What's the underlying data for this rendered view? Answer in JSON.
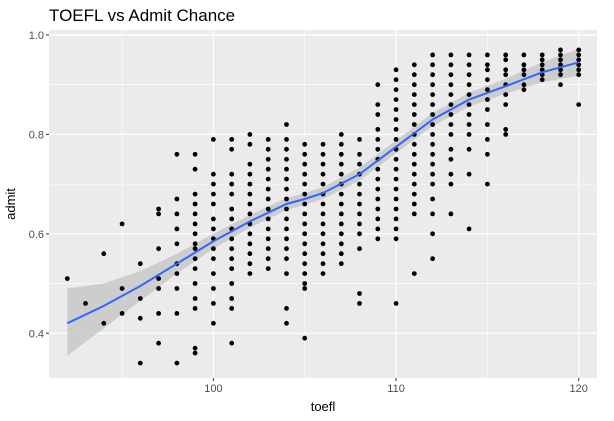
{
  "chart_data": {
    "type": "scatter",
    "title": "TOEFL vs Admit Chance",
    "xlabel": "toefl",
    "ylabel": "admit",
    "xlim": [
      91,
      121
    ],
    "ylim": [
      0.31,
      1.01
    ],
    "x_ticks": [
      100,
      110,
      120
    ],
    "y_ticks": [
      0.4,
      0.6,
      0.8,
      1.0
    ],
    "y_tick_labels": [
      "0.4",
      "0.6",
      "0.8",
      "1.0"
    ],
    "grid": true,
    "legend": "none",
    "colors": {
      "panel": "#ebebeb",
      "grid": "#ffffff",
      "points": "#000000",
      "smooth_line": "#3366ff",
      "ribbon": "#c8c8c8"
    },
    "points": [
      [
        92,
        0.51
      ],
      [
        93,
        0.46
      ],
      [
        94,
        0.42
      ],
      [
        94,
        0.56
      ],
      [
        95,
        0.44
      ],
      [
        95,
        0.49
      ],
      [
        95,
        0.62
      ],
      [
        96,
        0.34
      ],
      [
        96,
        0.43
      ],
      [
        96,
        0.47
      ],
      [
        96,
        0.54
      ],
      [
        97,
        0.38
      ],
      [
        97,
        0.44
      ],
      [
        97,
        0.49
      ],
      [
        97,
        0.51
      ],
      [
        97,
        0.57
      ],
      [
        97,
        0.64
      ],
      [
        97,
        0.65
      ],
      [
        98,
        0.34
      ],
      [
        98,
        0.44
      ],
      [
        98,
        0.49
      ],
      [
        98,
        0.52
      ],
      [
        98,
        0.54
      ],
      [
        98,
        0.58
      ],
      [
        98,
        0.61
      ],
      [
        98,
        0.64
      ],
      [
        98,
        0.67
      ],
      [
        98,
        0.76
      ],
      [
        99,
        0.36
      ],
      [
        99,
        0.37
      ],
      [
        99,
        0.45
      ],
      [
        99,
        0.47
      ],
      [
        99,
        0.5
      ],
      [
        99,
        0.53
      ],
      [
        99,
        0.55
      ],
      [
        99,
        0.57
      ],
      [
        99,
        0.58
      ],
      [
        99,
        0.6
      ],
      [
        99,
        0.62
      ],
      [
        99,
        0.64
      ],
      [
        99,
        0.66
      ],
      [
        99,
        0.68
      ],
      [
        99,
        0.73
      ],
      [
        99,
        0.76
      ],
      [
        100,
        0.42
      ],
      [
        100,
        0.46
      ],
      [
        100,
        0.49
      ],
      [
        100,
        0.52
      ],
      [
        100,
        0.55
      ],
      [
        100,
        0.57
      ],
      [
        100,
        0.59
      ],
      [
        100,
        0.61
      ],
      [
        100,
        0.63
      ],
      [
        100,
        0.66
      ],
      [
        100,
        0.68
      ],
      [
        100,
        0.7
      ],
      [
        100,
        0.72
      ],
      [
        100,
        0.79
      ],
      [
        101,
        0.38
      ],
      [
        101,
        0.45
      ],
      [
        101,
        0.47
      ],
      [
        101,
        0.5
      ],
      [
        101,
        0.53
      ],
      [
        101,
        0.55
      ],
      [
        101,
        0.57
      ],
      [
        101,
        0.59
      ],
      [
        101,
        0.61
      ],
      [
        101,
        0.63
      ],
      [
        101,
        0.65
      ],
      [
        101,
        0.68
      ],
      [
        101,
        0.7
      ],
      [
        101,
        0.72
      ],
      [
        101,
        0.77
      ],
      [
        101,
        0.79
      ],
      [
        102,
        0.52
      ],
      [
        102,
        0.54
      ],
      [
        102,
        0.56
      ],
      [
        102,
        0.58
      ],
      [
        102,
        0.6
      ],
      [
        102,
        0.62
      ],
      [
        102,
        0.64
      ],
      [
        102,
        0.66
      ],
      [
        102,
        0.68
      ],
      [
        102,
        0.7
      ],
      [
        102,
        0.72
      ],
      [
        102,
        0.74
      ],
      [
        102,
        0.78
      ],
      [
        102,
        0.8
      ],
      [
        103,
        0.53
      ],
      [
        103,
        0.55
      ],
      [
        103,
        0.57
      ],
      [
        103,
        0.59
      ],
      [
        103,
        0.61
      ],
      [
        103,
        0.63
      ],
      [
        103,
        0.65
      ],
      [
        103,
        0.67
      ],
      [
        103,
        0.69
      ],
      [
        103,
        0.71
      ],
      [
        103,
        0.73
      ],
      [
        103,
        0.75
      ],
      [
        103,
        0.77
      ],
      [
        103,
        0.79
      ],
      [
        104,
        0.42
      ],
      [
        104,
        0.45
      ],
      [
        104,
        0.52
      ],
      [
        104,
        0.55
      ],
      [
        104,
        0.57
      ],
      [
        104,
        0.59
      ],
      [
        104,
        0.61
      ],
      [
        104,
        0.63
      ],
      [
        104,
        0.65
      ],
      [
        104,
        0.67
      ],
      [
        104,
        0.69
      ],
      [
        104,
        0.71
      ],
      [
        104,
        0.73
      ],
      [
        104,
        0.75
      ],
      [
        104,
        0.77
      ],
      [
        104,
        0.79
      ],
      [
        104,
        0.82
      ],
      [
        105,
        0.39
      ],
      [
        105,
        0.49
      ],
      [
        105,
        0.5
      ],
      [
        105,
        0.52
      ],
      [
        105,
        0.54
      ],
      [
        105,
        0.56
      ],
      [
        105,
        0.58
      ],
      [
        105,
        0.6
      ],
      [
        105,
        0.62
      ],
      [
        105,
        0.64
      ],
      [
        105,
        0.66
      ],
      [
        105,
        0.68
      ],
      [
        105,
        0.7
      ],
      [
        105,
        0.72
      ],
      [
        105,
        0.74
      ],
      [
        105,
        0.76
      ],
      [
        105,
        0.78
      ],
      [
        106,
        0.52
      ],
      [
        106,
        0.54
      ],
      [
        106,
        0.56
      ],
      [
        106,
        0.58
      ],
      [
        106,
        0.6
      ],
      [
        106,
        0.62
      ],
      [
        106,
        0.64
      ],
      [
        106,
        0.66
      ],
      [
        106,
        0.68
      ],
      [
        106,
        0.7
      ],
      [
        106,
        0.72
      ],
      [
        106,
        0.74
      ],
      [
        106,
        0.76
      ],
      [
        106,
        0.78
      ],
      [
        107,
        0.54
      ],
      [
        107,
        0.56
      ],
      [
        107,
        0.58
      ],
      [
        107,
        0.6
      ],
      [
        107,
        0.62
      ],
      [
        107,
        0.64
      ],
      [
        107,
        0.66
      ],
      [
        107,
        0.68
      ],
      [
        107,
        0.7
      ],
      [
        107,
        0.72
      ],
      [
        107,
        0.74
      ],
      [
        107,
        0.76
      ],
      [
        107,
        0.78
      ],
      [
        107,
        0.8
      ],
      [
        108,
        0.46
      ],
      [
        108,
        0.48
      ],
      [
        108,
        0.57
      ],
      [
        108,
        0.6
      ],
      [
        108,
        0.62
      ],
      [
        108,
        0.64
      ],
      [
        108,
        0.66
      ],
      [
        108,
        0.68
      ],
      [
        108,
        0.7
      ],
      [
        108,
        0.72
      ],
      [
        108,
        0.74
      ],
      [
        108,
        0.76
      ],
      [
        108,
        0.79
      ],
      [
        109,
        0.59
      ],
      [
        109,
        0.61
      ],
      [
        109,
        0.63
      ],
      [
        109,
        0.65
      ],
      [
        109,
        0.67
      ],
      [
        109,
        0.69
      ],
      [
        109,
        0.71
      ],
      [
        109,
        0.73
      ],
      [
        109,
        0.75
      ],
      [
        109,
        0.77
      ],
      [
        109,
        0.79
      ],
      [
        109,
        0.81
      ],
      [
        109,
        0.84
      ],
      [
        109,
        0.86
      ],
      [
        109,
        0.9
      ],
      [
        110,
        0.46
      ],
      [
        110,
        0.59
      ],
      [
        110,
        0.61
      ],
      [
        110,
        0.63
      ],
      [
        110,
        0.65
      ],
      [
        110,
        0.67
      ],
      [
        110,
        0.69
      ],
      [
        110,
        0.71
      ],
      [
        110,
        0.73
      ],
      [
        110,
        0.75
      ],
      [
        110,
        0.77
      ],
      [
        110,
        0.79
      ],
      [
        110,
        0.81
      ],
      [
        110,
        0.83
      ],
      [
        110,
        0.85
      ],
      [
        110,
        0.87
      ],
      [
        110,
        0.89
      ],
      [
        110,
        0.91
      ],
      [
        110,
        0.93
      ],
      [
        111,
        0.52
      ],
      [
        111,
        0.64
      ],
      [
        111,
        0.66
      ],
      [
        111,
        0.68
      ],
      [
        111,
        0.7
      ],
      [
        111,
        0.72
      ],
      [
        111,
        0.74
      ],
      [
        111,
        0.76
      ],
      [
        111,
        0.78
      ],
      [
        111,
        0.8
      ],
      [
        111,
        0.82
      ],
      [
        111,
        0.84
      ],
      [
        111,
        0.86
      ],
      [
        111,
        0.88
      ],
      [
        111,
        0.9
      ],
      [
        111,
        0.92
      ],
      [
        111,
        0.94
      ],
      [
        112,
        0.55
      ],
      [
        112,
        0.6
      ],
      [
        112,
        0.64
      ],
      [
        112,
        0.67
      ],
      [
        112,
        0.7
      ],
      [
        112,
        0.72
      ],
      [
        112,
        0.74
      ],
      [
        112,
        0.76
      ],
      [
        112,
        0.78
      ],
      [
        112,
        0.8
      ],
      [
        112,
        0.82
      ],
      [
        112,
        0.84
      ],
      [
        112,
        0.86
      ],
      [
        112,
        0.88
      ],
      [
        112,
        0.9
      ],
      [
        112,
        0.92
      ],
      [
        112,
        0.94
      ],
      [
        112,
        0.96
      ],
      [
        113,
        0.64
      ],
      [
        113,
        0.7
      ],
      [
        113,
        0.72
      ],
      [
        113,
        0.75
      ],
      [
        113,
        0.77
      ],
      [
        113,
        0.8
      ],
      [
        113,
        0.82
      ],
      [
        113,
        0.84
      ],
      [
        113,
        0.86
      ],
      [
        113,
        0.88
      ],
      [
        113,
        0.9
      ],
      [
        113,
        0.92
      ],
      [
        113,
        0.94
      ],
      [
        113,
        0.96
      ],
      [
        114,
        0.61
      ],
      [
        114,
        0.72
      ],
      [
        114,
        0.77
      ],
      [
        114,
        0.8
      ],
      [
        114,
        0.82
      ],
      [
        114,
        0.84
      ],
      [
        114,
        0.86
      ],
      [
        114,
        0.88
      ],
      [
        114,
        0.9
      ],
      [
        114,
        0.92
      ],
      [
        114,
        0.94
      ],
      [
        114,
        0.96
      ],
      [
        115,
        0.7
      ],
      [
        115,
        0.76
      ],
      [
        115,
        0.79
      ],
      [
        115,
        0.82
      ],
      [
        115,
        0.85
      ],
      [
        115,
        0.87
      ],
      [
        115,
        0.89
      ],
      [
        115,
        0.91
      ],
      [
        115,
        0.93
      ],
      [
        115,
        0.94
      ],
      [
        115,
        0.96
      ],
      [
        116,
        0.8
      ],
      [
        116,
        0.81
      ],
      [
        116,
        0.86
      ],
      [
        116,
        0.88
      ],
      [
        116,
        0.9
      ],
      [
        116,
        0.92
      ],
      [
        116,
        0.93
      ],
      [
        116,
        0.95
      ],
      [
        116,
        0.96
      ],
      [
        117,
        0.89
      ],
      [
        117,
        0.9
      ],
      [
        117,
        0.92
      ],
      [
        117,
        0.93
      ],
      [
        117,
        0.94
      ],
      [
        117,
        0.96
      ],
      [
        118,
        0.91
      ],
      [
        118,
        0.92
      ],
      [
        118,
        0.93
      ],
      [
        118,
        0.94
      ],
      [
        118,
        0.95
      ],
      [
        118,
        0.96
      ],
      [
        119,
        0.9
      ],
      [
        119,
        0.92
      ],
      [
        119,
        0.93
      ],
      [
        119,
        0.94
      ],
      [
        119,
        0.95
      ],
      [
        119,
        0.96
      ],
      [
        119,
        0.97
      ],
      [
        120,
        0.86
      ],
      [
        120,
        0.92
      ],
      [
        120,
        0.93
      ],
      [
        120,
        0.94
      ],
      [
        120,
        0.95
      ],
      [
        120,
        0.96
      ],
      [
        120,
        0.97
      ]
    ],
    "smooth": [
      {
        "x": 92,
        "y": 0.42,
        "lo": 0.355,
        "hi": 0.49
      },
      {
        "x": 94,
        "y": 0.455,
        "lo": 0.41,
        "hi": 0.5
      },
      {
        "x": 96,
        "y": 0.495,
        "lo": 0.465,
        "hi": 0.525
      },
      {
        "x": 98,
        "y": 0.54,
        "lo": 0.52,
        "hi": 0.56
      },
      {
        "x": 100,
        "y": 0.585,
        "lo": 0.57,
        "hi": 0.6
      },
      {
        "x": 102,
        "y": 0.625,
        "lo": 0.612,
        "hi": 0.638
      },
      {
        "x": 104,
        "y": 0.66,
        "lo": 0.648,
        "hi": 0.672
      },
      {
        "x": 105,
        "y": 0.67,
        "lo": 0.658,
        "hi": 0.682
      },
      {
        "x": 106,
        "y": 0.682,
        "lo": 0.67,
        "hi": 0.694
      },
      {
        "x": 108,
        "y": 0.72,
        "lo": 0.707,
        "hi": 0.733
      },
      {
        "x": 110,
        "y": 0.775,
        "lo": 0.762,
        "hi": 0.788
      },
      {
        "x": 112,
        "y": 0.83,
        "lo": 0.817,
        "hi": 0.843
      },
      {
        "x": 114,
        "y": 0.87,
        "lo": 0.856,
        "hi": 0.884
      },
      {
        "x": 116,
        "y": 0.897,
        "lo": 0.882,
        "hi": 0.912
      },
      {
        "x": 118,
        "y": 0.925,
        "lo": 0.905,
        "hi": 0.945
      },
      {
        "x": 120,
        "y": 0.945,
        "lo": 0.918,
        "hi": 0.972
      }
    ]
  }
}
